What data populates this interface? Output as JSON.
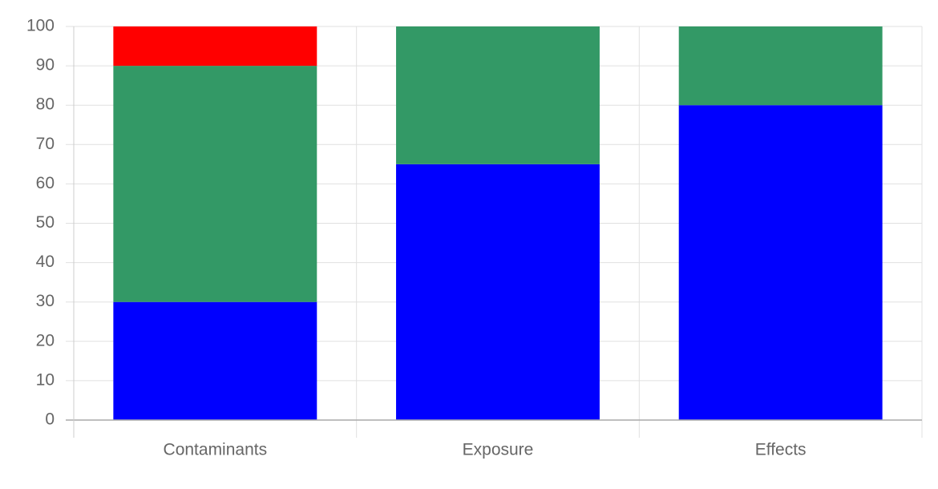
{
  "chart_data": {
    "type": "stacked_bar",
    "categories": [
      "Contaminants",
      "Exposure",
      "Effects"
    ],
    "series": [
      {
        "color": "#0000ff",
        "values": [
          30,
          65,
          80
        ]
      },
      {
        "color": "#339966",
        "values": [
          60,
          35,
          20
        ]
      },
      {
        "color": "#ff0000",
        "values": [
          10,
          0,
          0
        ]
      }
    ],
    "ylim": [
      0,
      100
    ],
    "yticks": [
      0,
      10,
      20,
      30,
      40,
      50,
      60,
      70,
      80,
      90,
      100
    ],
    "grid": true
  }
}
